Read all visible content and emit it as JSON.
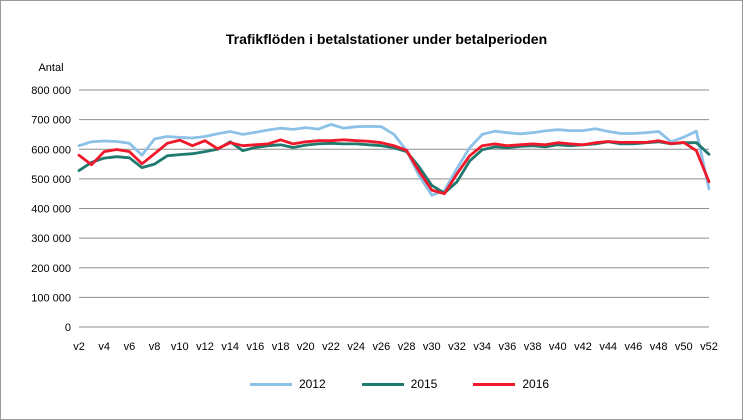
{
  "window": {
    "background": "#ffffff",
    "border_color": "#9b9b9b"
  },
  "chart_data": {
    "type": "line",
    "title": "Trafikflöden i betalstationer under betalperioden",
    "ylabel": "Antal",
    "xlabel": "",
    "xlim_weeks": [
      2,
      52
    ],
    "ylim": [
      0,
      800000
    ],
    "grid": "horizontal",
    "legend_position": "bottom",
    "y_ticks": [
      {
        "value": 0,
        "label": "0"
      },
      {
        "value": 100000,
        "label": "100 000"
      },
      {
        "value": 200000,
        "label": "200 000"
      },
      {
        "value": 300000,
        "label": "300 000"
      },
      {
        "value": 400000,
        "label": "400 000"
      },
      {
        "value": 500000,
        "label": "500 000"
      },
      {
        "value": 600000,
        "label": "600 000"
      },
      {
        "value": 700000,
        "label": "700 000"
      },
      {
        "value": 800000,
        "label": "800 000"
      }
    ],
    "x_ticks": [
      {
        "week": 2,
        "label": "v2"
      },
      {
        "week": 4,
        "label": "v4"
      },
      {
        "week": 6,
        "label": "v6"
      },
      {
        "week": 8,
        "label": "v8"
      },
      {
        "week": 10,
        "label": "v10"
      },
      {
        "week": 12,
        "label": "v12"
      },
      {
        "week": 14,
        "label": "v14"
      },
      {
        "week": 16,
        "label": "v16"
      },
      {
        "week": 18,
        "label": "v18"
      },
      {
        "week": 20,
        "label": "v20"
      },
      {
        "week": 22,
        "label": "v22"
      },
      {
        "week": 24,
        "label": "v24"
      },
      {
        "week": 26,
        "label": "v26"
      },
      {
        "week": 28,
        "label": "v28"
      },
      {
        "week": 30,
        "label": "v30"
      },
      {
        "week": 32,
        "label": "v32"
      },
      {
        "week": 34,
        "label": "v34"
      },
      {
        "week": 36,
        "label": "v36"
      },
      {
        "week": 38,
        "label": "v38"
      },
      {
        "week": 40,
        "label": "v40"
      },
      {
        "week": 42,
        "label": "v42"
      },
      {
        "week": 44,
        "label": "v44"
      },
      {
        "week": 46,
        "label": "v46"
      },
      {
        "week": 48,
        "label": "v48"
      },
      {
        "week": 50,
        "label": "v50"
      },
      {
        "week": 52,
        "label": "v52"
      }
    ],
    "x": [
      2,
      3,
      4,
      5,
      6,
      7,
      8,
      9,
      10,
      11,
      12,
      13,
      14,
      15,
      16,
      17,
      18,
      19,
      20,
      21,
      22,
      23,
      24,
      25,
      26,
      27,
      28,
      29,
      30,
      31,
      32,
      33,
      34,
      35,
      36,
      37,
      38,
      39,
      40,
      41,
      42,
      43,
      44,
      45,
      46,
      47,
      48,
      49,
      50,
      51,
      52
    ],
    "series": [
      {
        "name": "2012",
        "color": "#8CC1E8",
        "values": [
          612000,
          625000,
          628000,
          626000,
          620000,
          580000,
          635000,
          643000,
          640000,
          638000,
          643000,
          652000,
          660000,
          650000,
          657000,
          665000,
          671000,
          667000,
          673000,
          668000,
          684000,
          671000,
          676000,
          677000,
          676000,
          650000,
          595000,
          510000,
          445000,
          460000,
          535000,
          605000,
          650000,
          661000,
          656000,
          652000,
          656000,
          662000,
          666000,
          663000,
          663000,
          669000,
          660000,
          653000,
          653000,
          656000,
          660000,
          625000,
          641000,
          661000,
          466000
        ]
      },
      {
        "name": "2015",
        "color": "#20796D",
        "values": [
          528000,
          556000,
          570000,
          575000,
          571000,
          538000,
          550000,
          578000,
          582000,
          585000,
          592000,
          600000,
          625000,
          595000,
          606000,
          612000,
          615000,
          606000,
          614000,
          618000,
          620000,
          618000,
          618000,
          615000,
          612000,
          605000,
          592000,
          540000,
          478000,
          452000,
          490000,
          560000,
          598000,
          608000,
          605000,
          610000,
          612000,
          608000,
          615000,
          612000,
          615000,
          618000,
          625000,
          618000,
          618000,
          622000,
          625000,
          618000,
          622000,
          622000,
          583000
        ]
      },
      {
        "name": "2016",
        "color": "#F0182B",
        "values": [
          580000,
          548000,
          592000,
          599000,
          592000,
          551000,
          585000,
          620000,
          631000,
          612000,
          629000,
          602000,
          622000,
          612000,
          615000,
          618000,
          632000,
          618000,
          625000,
          629000,
          629000,
          632000,
          629000,
          627000,
          622000,
          612000,
          596000,
          525000,
          462000,
          450000,
          517000,
          578000,
          612000,
          618000,
          612000,
          615000,
          618000,
          615000,
          622000,
          618000,
          615000,
          622000,
          626000,
          623000,
          623000,
          623000,
          629000,
          619000,
          623000,
          595000,
          490000
        ]
      }
    ]
  }
}
